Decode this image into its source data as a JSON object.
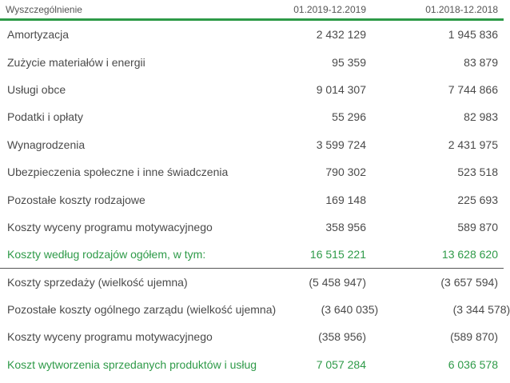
{
  "header": {
    "col_label": "Wyszczególnienie",
    "col_1": "01.2019-12.2019",
    "col_2": "01.2018-12.2018"
  },
  "rows": [
    {
      "label": "Amortyzacja",
      "v1": "2 432 129",
      "v2": "1 945 836"
    },
    {
      "label": "Zużycie materiałów i energii",
      "v1": "95 359",
      "v2": "83 879"
    },
    {
      "label": "Usługi obce",
      "v1": "9 014 307",
      "v2": "7 744 866"
    },
    {
      "label": "Podatki i opłaty",
      "v1": "55 296",
      "v2": "82 983"
    },
    {
      "label": "Wynagrodzenia",
      "v1": "3 599 724",
      "v2": "2 431 975"
    },
    {
      "label": "Ubezpieczenia społeczne i inne świadczenia",
      "v1": "790 302",
      "v2": "523 518"
    },
    {
      "label": "Pozostałe koszty rodzajowe",
      "v1": "169 148",
      "v2": "225 693"
    },
    {
      "label": "Koszty wyceny programu motywacyjnego",
      "v1": "358 956",
      "v2": "589 870"
    }
  ],
  "subtotal": {
    "label": "Koszty według rodzajów ogółem, w tym:",
    "v1": "16 515 221",
    "v2": "13 628 620"
  },
  "rows2": [
    {
      "label": "Koszty sprzedaży (wielkość ujemna)",
      "v1": "(5 458 947)",
      "v2": "(3 657 594)"
    },
    {
      "label": "Pozostałe koszty ogólnego zarządu (wielkość ujemna)",
      "v1": "(3 640 035)",
      "v2": "(3 344 578)"
    },
    {
      "label": "Koszty wyceny programu motywacyjnego",
      "v1": "(358 956)",
      "v2": "(589 870)"
    }
  ],
  "total": {
    "label": "Koszt wytworzenia sprzedanych produktów i usług",
    "v1": "7 057 284",
    "v2": "6 036 578"
  },
  "colors": {
    "accent": "#2e9a48",
    "text": "#4a4a4a"
  }
}
